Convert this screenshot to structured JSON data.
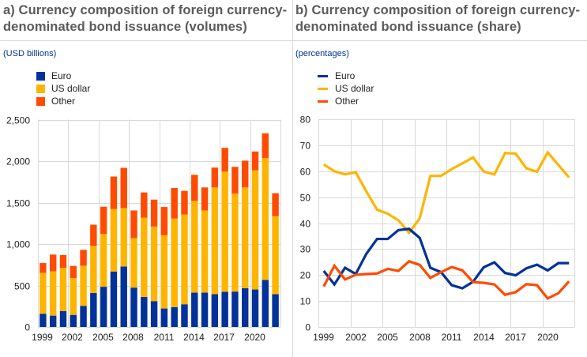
{
  "colors": {
    "euro": "#003299",
    "us_dollar": "#FFB400",
    "other": "#FF4B00",
    "grid": "#d9d9d9",
    "title": "#5a5a5a",
    "unit": "#003299"
  },
  "panel_a": {
    "title": "a) Currency composition of foreign currency-\ndenominated bond issuance (volumes)",
    "unit": "(USD billions)",
    "legend": [
      {
        "key": "euro",
        "label": "Euro"
      },
      {
        "key": "us_dollar",
        "label": "US dollar"
      },
      {
        "key": "other",
        "label": "Other"
      }
    ]
  },
  "panel_b": {
    "title": "b) Currency composition of foreign currency-\ndenominated bond issuance (share)",
    "unit": "(percentages)",
    "legend": [
      {
        "key": "euro",
        "label": "Euro"
      },
      {
        "key": "us_dollar",
        "label": "US dollar"
      },
      {
        "key": "other",
        "label": "Other"
      }
    ]
  },
  "chart_data": [
    {
      "type": "bar",
      "stacked": true,
      "title": "a) Currency composition of foreign currency-denominated bond issuance (volumes)",
      "ylabel": "(USD billions)",
      "xlabel": "",
      "categories": [
        "1999",
        "2000",
        "2001",
        "2002",
        "2003",
        "2004",
        "2005",
        "2006",
        "2007",
        "2008",
        "2009",
        "2010",
        "2011",
        "2012",
        "2013",
        "2014",
        "2015",
        "2016",
        "2017",
        "2018",
        "2019",
        "2020",
        "2021",
        "2022"
      ],
      "xtick_labels": [
        "1999",
        "2002",
        "2005",
        "2008",
        "2011",
        "2014",
        "2017",
        "2020"
      ],
      "ytick_labels": [
        "0",
        "500",
        "1,000",
        "1,500",
        "2,000",
        "2,500"
      ],
      "yticks": [
        0,
        500,
        1000,
        1500,
        2000,
        2500
      ],
      "ylim": [
        0,
        2500
      ],
      "grid": true,
      "legend_position": "top-left",
      "series": [
        {
          "name": "Euro",
          "key": "euro",
          "values": [
            160,
            137,
            191,
            146,
            255,
            411,
            485,
            669,
            729,
            475,
            363,
            312,
            223,
            240,
            274,
            414,
            414,
            395,
            424,
            427,
            468,
            452,
            567,
            395
          ]
        },
        {
          "name": "US dollar",
          "key": "us_dollar",
          "values": [
            493,
            535,
            523,
            444,
            484,
            567,
            636,
            753,
            705,
            596,
            956,
            899,
            883,
            1068,
            1083,
            1106,
            991,
            1288,
            1450,
            1182,
            1215,
            1438,
            1469,
            941
          ]
        },
        {
          "name": "Other",
          "key": "other",
          "values": [
            118,
            201,
            153,
            146,
            191,
            255,
            329,
            392,
            485,
            334,
            303,
            325,
            341,
            368,
            284,
            315,
            278,
            239,
            286,
            322,
            322,
            226,
            300,
            277
          ]
        }
      ]
    },
    {
      "type": "line",
      "title": "b) Currency composition of foreign currency-denominated bond issuance (share)",
      "ylabel": "(percentages)",
      "xlabel": "",
      "categories": [
        "1999",
        "2000",
        "2001",
        "2002",
        "2003",
        "2004",
        "2005",
        "2006",
        "2007",
        "2008",
        "2009",
        "2010",
        "2011",
        "2012",
        "2013",
        "2014",
        "2015",
        "2016",
        "2017",
        "2018",
        "2019",
        "2020",
        "2021",
        "2022"
      ],
      "xtick_labels": [
        "1999",
        "2002",
        "2005",
        "2008",
        "2011",
        "2014",
        "2017",
        "2020"
      ],
      "ytick_labels": [
        "0",
        "10",
        "20",
        "30",
        "40",
        "50",
        "60",
        "70",
        "80"
      ],
      "yticks": [
        0,
        10,
        20,
        30,
        40,
        50,
        60,
        70,
        80
      ],
      "ylim": [
        0,
        80
      ],
      "grid": true,
      "legend_position": "top-left",
      "series": [
        {
          "name": "Euro",
          "key": "euro",
          "values": [
            21.6,
            16.4,
            22.8,
            20.4,
            28.2,
            33.9,
            33.9,
            37.3,
            37.8,
            34.3,
            22.8,
            21.1,
            16.1,
            14.9,
            17.4,
            23.0,
            24.9,
            20.8,
            19.9,
            22.6,
            24.0,
            21.8,
            24.6,
            24.6
          ]
        },
        {
          "name": "US dollar",
          "key": "us_dollar",
          "values": [
            62.6,
            60.0,
            58.8,
            59.6,
            52.2,
            45.2,
            43.6,
            41.1,
            36.3,
            41.8,
            58.2,
            58.2,
            60.8,
            63.0,
            65.3,
            59.9,
            58.7,
            67.0,
            66.8,
            61.1,
            59.8,
            67.2,
            62.4,
            57.6
          ]
        },
        {
          "name": "Other",
          "key": "other",
          "values": [
            15.6,
            23.6,
            18.3,
            20.1,
            20.4,
            20.6,
            22.4,
            21.6,
            25.3,
            23.9,
            18.9,
            21.1,
            23.1,
            21.8,
            17.3,
            17.0,
            16.4,
            12.4,
            13.4,
            16.5,
            16.1,
            11.0,
            13.0,
            17.6
          ]
        }
      ]
    }
  ]
}
